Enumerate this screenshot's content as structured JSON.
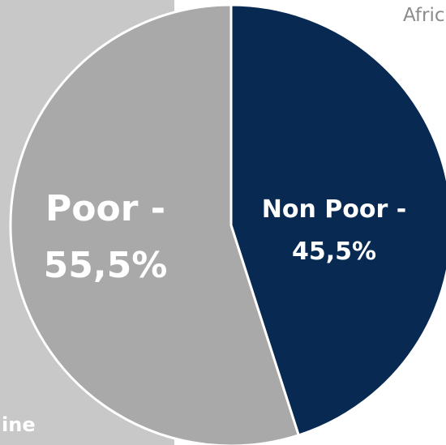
{
  "corner_title": "Afric",
  "corner_label": "ine",
  "chart_data": {
    "type": "pie",
    "title": "",
    "slices": [
      {
        "name": "Non Poor",
        "label_line1": "Non Poor -",
        "label_line2": "45,5%",
        "value": 45.5,
        "color": "#082a52",
        "text_color": "#ffffff"
      },
      {
        "name": "Poor",
        "label_line1": "Poor -",
        "label_line2": "55,5%",
        "value": 55.5,
        "color": "#a9a9a9",
        "text_color": "#ffffff"
      }
    ]
  }
}
